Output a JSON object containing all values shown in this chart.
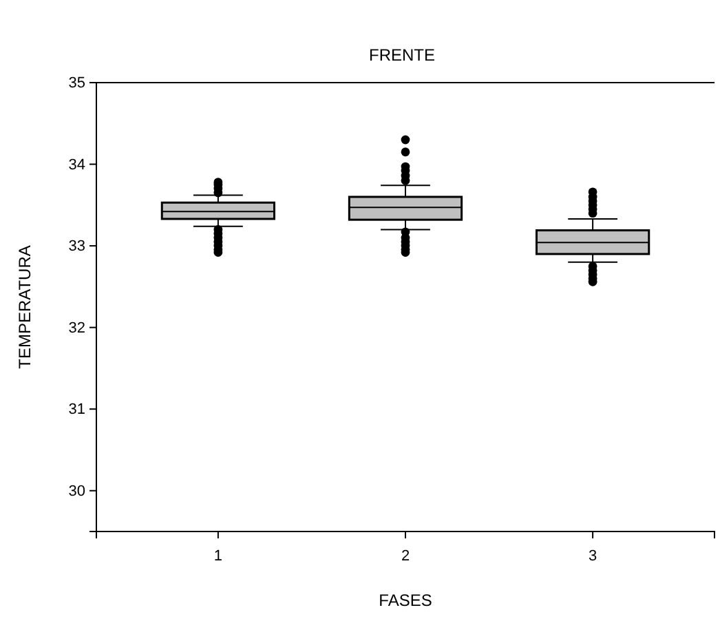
{
  "chart_data": {
    "type": "box",
    "title": "FRENTE",
    "xlabel": "FASES",
    "ylabel": "TEMPERATURA",
    "categories": [
      "1",
      "2",
      "3"
    ],
    "ylim": [
      29.5,
      35
    ],
    "yticks": [
      30,
      31,
      32,
      33,
      34,
      35
    ],
    "grid": false,
    "color": "#c0c0c0",
    "boxes": [
      {
        "low": 33.24,
        "q1": 33.33,
        "median": 33.42,
        "q3": 33.53,
        "high": 33.62,
        "outliers": [
          33.65,
          33.7,
          33.75,
          33.78,
          33.2,
          33.15,
          33.1,
          33.05,
          33.0,
          32.95,
          32.92
        ]
      },
      {
        "low": 33.2,
        "q1": 33.32,
        "median": 33.47,
        "q3": 33.6,
        "high": 33.74,
        "outliers": [
          33.8,
          33.86,
          33.92,
          33.97,
          34.15,
          34.3,
          33.17,
          33.1,
          33.05,
          33.0,
          32.95,
          32.92
        ]
      },
      {
        "low": 32.8,
        "q1": 32.9,
        "median": 33.04,
        "q3": 33.19,
        "high": 33.33,
        "outliers": [
          33.4,
          33.45,
          33.5,
          33.55,
          33.6,
          33.66,
          32.75,
          32.7,
          32.65,
          32.6,
          32.56
        ]
      }
    ]
  }
}
